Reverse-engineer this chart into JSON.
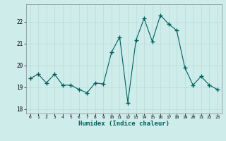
{
  "x_values": [
    0,
    1,
    2,
    3,
    4,
    5,
    6,
    7,
    8,
    9,
    10,
    11,
    12,
    13,
    14,
    15,
    16,
    17,
    18,
    19,
    20,
    21,
    22,
    23
  ],
  "y_values": [
    19.4,
    19.6,
    19.2,
    19.6,
    19.1,
    19.1,
    18.9,
    18.75,
    19.2,
    19.15,
    20.6,
    21.3,
    18.3,
    21.15,
    22.15,
    21.1,
    22.3,
    21.9,
    21.6,
    19.9,
    19.1,
    19.5,
    19.1,
    18.9
  ],
  "line_color": "#006060",
  "marker": "+",
  "marker_size": 4,
  "background_color": "#ceecea",
  "grid_color": "#b8dbd8",
  "xlabel": "Humidex (Indice chaleur)",
  "xlim": [
    -0.5,
    23.5
  ],
  "ylim": [
    17.8,
    22.8
  ],
  "yticks": [
    18,
    19,
    20,
    21,
    22
  ],
  "xticks": [
    0,
    1,
    2,
    3,
    4,
    5,
    6,
    7,
    8,
    9,
    10,
    11,
    12,
    13,
    14,
    15,
    16,
    17,
    18,
    19,
    20,
    21,
    22,
    23
  ],
  "figsize": [
    3.2,
    2.0
  ],
  "dpi": 100
}
